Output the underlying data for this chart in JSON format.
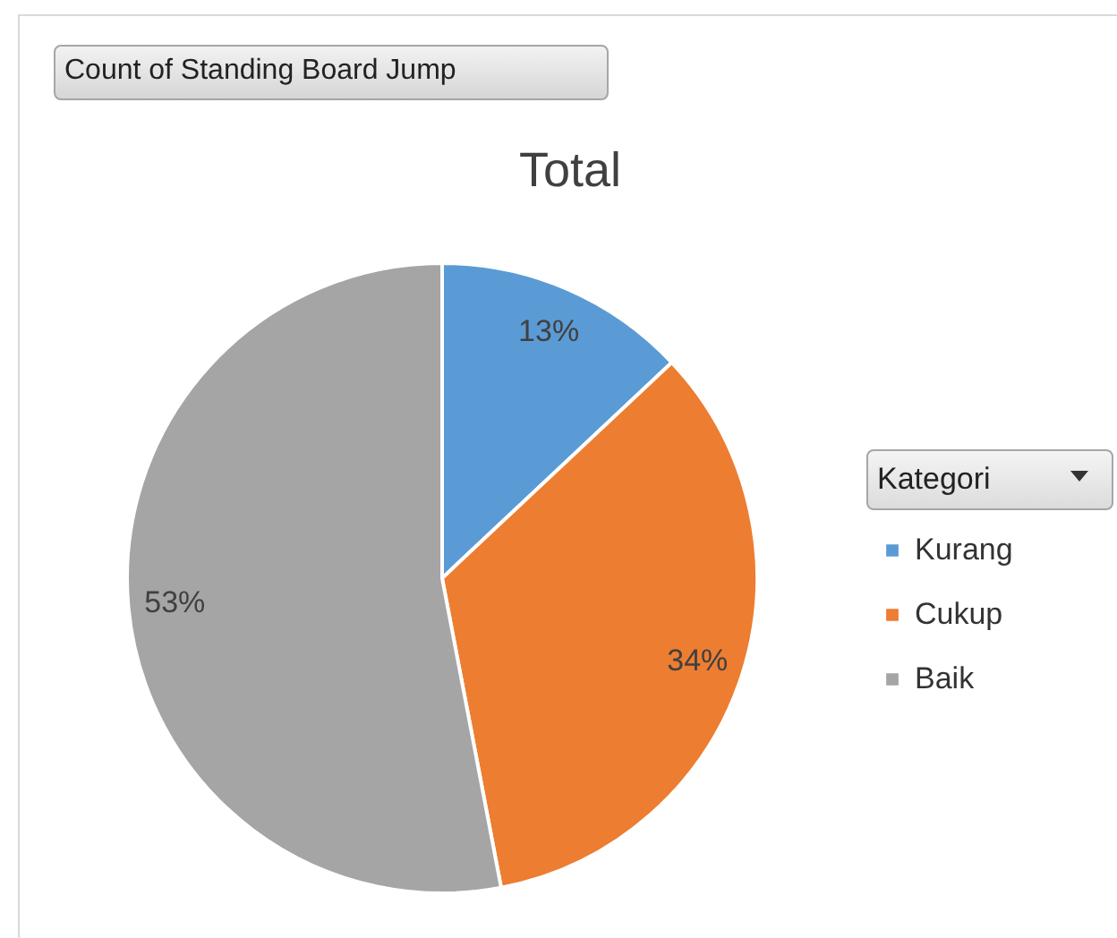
{
  "chart_data": {
    "type": "pie",
    "title": "Total",
    "legend_title": "Kategori",
    "legend": "right",
    "annotations": [
      "Count of Standing Board Jump"
    ],
    "categories": [
      "Kurang",
      "Cukup",
      "Baik"
    ],
    "values": [
      13,
      34,
      53
    ],
    "colors": [
      "#5b9bd5",
      "#ed7d31",
      "#a5a5a5"
    ],
    "value_labels": [
      "13%",
      "34%",
      "53%"
    ]
  }
}
